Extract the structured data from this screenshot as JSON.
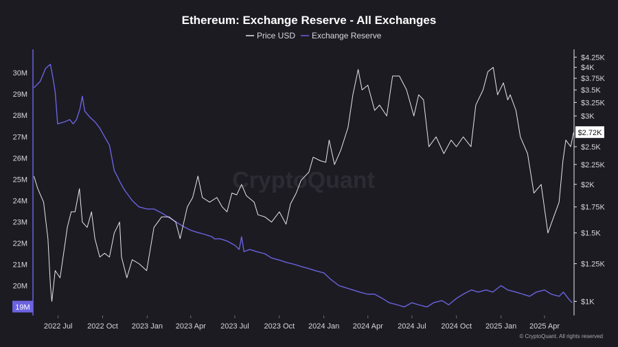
{
  "chart_data": {
    "type": "line",
    "title": "Ethereum: Exchange Reserve - All Exchanges",
    "watermark": "CryptoQuant",
    "copyright": "© CryptoQuant. All rights reserved",
    "legend": [
      {
        "name": "Price USD",
        "color": "#e8e8ec"
      },
      {
        "name": "Exchange Reserve",
        "color": "#6b63e0"
      }
    ],
    "x_ticks": [
      "2022 Jul",
      "2022 Oct",
      "2023 Jan",
      "2023 Apr",
      "2023 Jul",
      "2023 Oct",
      "2024 Jan",
      "2024 Apr",
      "2024 Jul",
      "2024 Oct",
      "2025 Jan",
      "2025 Apr"
    ],
    "x_range": [
      "2022-05-10",
      "2025-06-01"
    ],
    "left_axis": {
      "ticks": [
        "30M",
        "29M",
        "28M",
        "27M",
        "26M",
        "25M",
        "24M",
        "23M",
        "22M",
        "21M",
        "20M"
      ],
      "tick_values": [
        30,
        29,
        28,
        27,
        26,
        25,
        24,
        23,
        22,
        21,
        20
      ],
      "range_millions": [
        18.6,
        31.1
      ],
      "current_label": "19M",
      "current_value": 19
    },
    "right_axis": {
      "scale": "log",
      "ticks": [
        "$4.25K",
        "$4K",
        "$3.75K",
        "$3.5K",
        "$3.25K",
        "$3K",
        "$2.5K",
        "$2.25K",
        "$2K",
        "$1.75K",
        "$1.5K",
        "$1.25K",
        "$1K"
      ],
      "tick_values": [
        4250,
        4000,
        3750,
        3500,
        3250,
        3000,
        2500,
        2250,
        2000,
        1750,
        1500,
        1250,
        1000
      ],
      "current_label": "$2.72K",
      "current_value": 2720
    },
    "series": [
      {
        "name": "Exchange Reserve",
        "axis": "left",
        "color": "#6b63e0",
        "unit": "M",
        "x": [
          "2022-05-12",
          "2022-05-25",
          "2022-06-05",
          "2022-06-15",
          "2022-06-20",
          "2022-06-25",
          "2022-06-30",
          "2022-07-15",
          "2022-07-25",
          "2022-08-01",
          "2022-08-08",
          "2022-08-15",
          "2022-08-20",
          "2022-08-25",
          "2022-09-05",
          "2022-09-15",
          "2022-09-25",
          "2022-10-05",
          "2022-10-15",
          "2022-10-25",
          "2022-11-01",
          "2022-11-05",
          "2022-11-10",
          "2022-11-15",
          "2022-12-01",
          "2022-12-15",
          "2023-01-01",
          "2023-01-15",
          "2023-02-01",
          "2023-02-15",
          "2023-03-01",
          "2023-03-15",
          "2023-04-01",
          "2023-04-15",
          "2023-05-01",
          "2023-05-15",
          "2023-05-20",
          "2023-06-01",
          "2023-06-15",
          "2023-07-01",
          "2023-07-10",
          "2023-07-15",
          "2023-07-20",
          "2023-08-01",
          "2023-08-15",
          "2023-09-01",
          "2023-09-15",
          "2023-10-01",
          "2023-10-15",
          "2023-11-01",
          "2023-11-15",
          "2023-12-01",
          "2023-12-15",
          "2024-01-01",
          "2024-01-15",
          "2024-02-01",
          "2024-02-15",
          "2024-03-01",
          "2024-03-15",
          "2024-04-01",
          "2024-04-15",
          "2024-05-01",
          "2024-05-15",
          "2024-06-01",
          "2024-06-15",
          "2024-07-01",
          "2024-07-15",
          "2024-08-01",
          "2024-08-15",
          "2024-09-01",
          "2024-09-15",
          "2024-10-01",
          "2024-10-15",
          "2024-11-01",
          "2024-11-15",
          "2024-12-01",
          "2024-12-15",
          "2025-01-01",
          "2025-01-15",
          "2025-02-01",
          "2025-02-15",
          "2025-03-01",
          "2025-03-15",
          "2025-04-01",
          "2025-04-15",
          "2025-05-01",
          "2025-05-10",
          "2025-05-20",
          "2025-05-28"
        ],
        "values": [
          29.3,
          29.6,
          30.2,
          30.4,
          29.8,
          29.1,
          27.6,
          27.7,
          27.8,
          27.6,
          27.8,
          28.3,
          28.9,
          28.2,
          27.9,
          27.7,
          27.4,
          27.0,
          26.6,
          25.4,
          25.1,
          24.9,
          24.7,
          24.5,
          24.0,
          23.7,
          23.6,
          23.6,
          23.4,
          23.2,
          23.0,
          22.8,
          22.6,
          22.5,
          22.4,
          22.3,
          22.2,
          22.2,
          22.1,
          21.9,
          21.7,
          22.3,
          21.6,
          21.7,
          21.6,
          21.5,
          21.3,
          21.2,
          21.1,
          21.0,
          20.9,
          20.8,
          20.7,
          20.6,
          20.3,
          20.0,
          19.9,
          19.8,
          19.7,
          19.6,
          19.6,
          19.4,
          19.2,
          19.1,
          19.0,
          19.2,
          19.1,
          19.0,
          19.2,
          19.3,
          19.1,
          19.4,
          19.6,
          19.8,
          19.7,
          19.8,
          19.7,
          20.0,
          19.8,
          19.7,
          19.6,
          19.5,
          19.7,
          19.8,
          19.6,
          19.5,
          19.7,
          19.4,
          19.2
        ]
      },
      {
        "name": "Price USD",
        "axis": "right",
        "color": "#e8e8ec",
        "unit": "USD",
        "x": [
          "2022-05-12",
          "2022-05-20",
          "2022-06-01",
          "2022-06-10",
          "2022-06-15",
          "2022-06-18",
          "2022-06-25",
          "2022-07-05",
          "2022-07-15",
          "2022-07-20",
          "2022-07-28",
          "2022-08-05",
          "2022-08-14",
          "2022-08-20",
          "2022-08-30",
          "2022-09-08",
          "2022-09-15",
          "2022-09-25",
          "2022-10-05",
          "2022-10-15",
          "2022-10-25",
          "2022-11-05",
          "2022-11-09",
          "2022-11-20",
          "2022-12-01",
          "2022-12-15",
          "2022-12-31",
          "2023-01-15",
          "2023-01-31",
          "2023-02-15",
          "2023-03-01",
          "2023-03-10",
          "2023-03-25",
          "2023-04-05",
          "2023-04-16",
          "2023-04-25",
          "2023-05-10",
          "2023-05-25",
          "2023-06-05",
          "2023-06-15",
          "2023-06-25",
          "2023-07-05",
          "2023-07-15",
          "2023-07-25",
          "2023-08-10",
          "2023-08-18",
          "2023-09-01",
          "2023-09-15",
          "2023-10-01",
          "2023-10-15",
          "2023-10-24",
          "2023-11-05",
          "2023-11-15",
          "2023-12-01",
          "2023-12-10",
          "2023-12-25",
          "2024-01-05",
          "2024-01-12",
          "2024-01-23",
          "2024-02-05",
          "2024-02-20",
          "2024-03-01",
          "2024-03-12",
          "2024-03-20",
          "2024-04-01",
          "2024-04-15",
          "2024-04-25",
          "2024-05-10",
          "2024-05-22",
          "2024-06-05",
          "2024-06-20",
          "2024-07-05",
          "2024-07-15",
          "2024-07-25",
          "2024-08-05",
          "2024-08-20",
          "2024-09-05",
          "2024-09-20",
          "2024-10-01",
          "2024-10-15",
          "2024-10-31",
          "2024-11-10",
          "2024-11-25",
          "2024-12-05",
          "2024-12-16",
          "2024-12-25",
          "2025-01-06",
          "2025-01-15",
          "2025-01-20",
          "2025-02-01",
          "2025-02-10",
          "2025-02-25",
          "2025-03-10",
          "2025-03-25",
          "2025-04-08",
          "2025-04-20",
          "2025-05-01",
          "2025-05-09",
          "2025-05-15",
          "2025-05-25",
          "2025-05-31"
        ],
        "values": [
          2100,
          1950,
          1800,
          1450,
          1100,
          1000,
          1200,
          1150,
          1400,
          1550,
          1700,
          1700,
          1950,
          1600,
          1550,
          1700,
          1450,
          1300,
          1330,
          1300,
          1500,
          1600,
          1300,
          1150,
          1280,
          1250,
          1200,
          1550,
          1650,
          1650,
          1600,
          1450,
          1750,
          1850,
          2100,
          1850,
          1800,
          1850,
          1750,
          1700,
          1900,
          1880,
          2000,
          1870,
          1800,
          1670,
          1650,
          1600,
          1700,
          1580,
          1780,
          1900,
          2050,
          2150,
          2350,
          2300,
          2280,
          2600,
          2250,
          2450,
          2800,
          3400,
          3950,
          3500,
          3600,
          3100,
          3200,
          3000,
          3800,
          3800,
          3500,
          3000,
          3400,
          3300,
          2500,
          2650,
          2400,
          2600,
          2500,
          2650,
          2500,
          3200,
          3500,
          3900,
          4000,
          3400,
          3650,
          3300,
          3400,
          3100,
          2650,
          2400,
          1900,
          2000,
          1500,
          1650,
          1800,
          2300,
          2600,
          2500,
          2720
        ]
      }
    ]
  }
}
